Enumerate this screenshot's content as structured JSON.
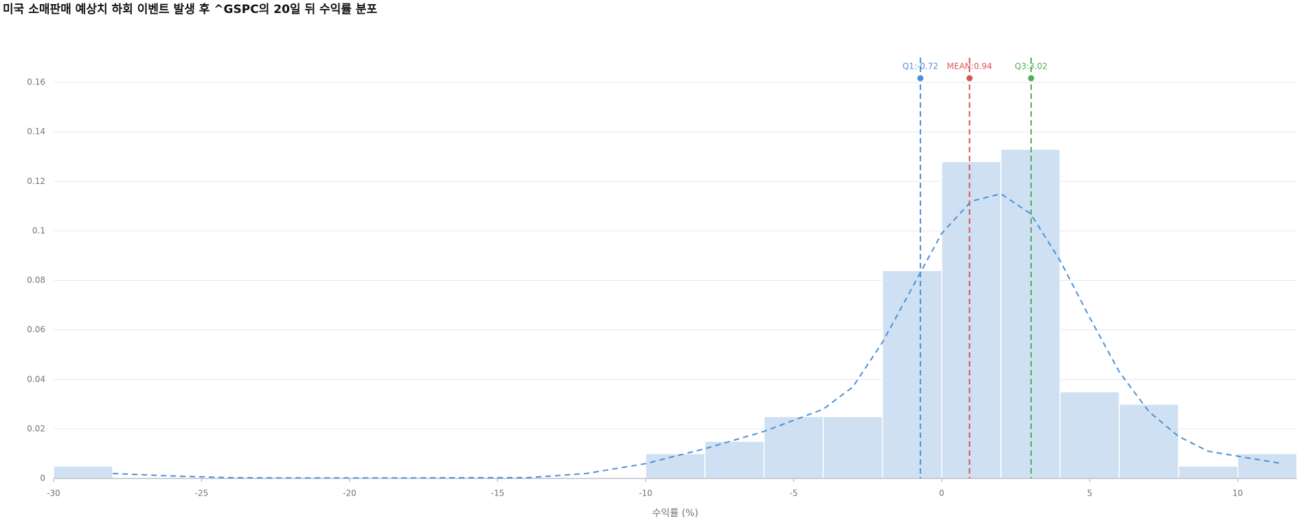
{
  "chart_data": {
    "type": "histogram",
    "title": "미국 소매판매 예상치 하회 이벤트 발생 후 ^GSPC의 20일 뒤 수익률 분포",
    "x_label": "수익률 (%)",
    "bins": [
      -30,
      -28,
      -26,
      -24,
      -22,
      -20,
      -18,
      -16,
      -14,
      -12,
      -10,
      -8,
      -6,
      -4,
      -2,
      0,
      2,
      4,
      6,
      8,
      10,
      12
    ],
    "values": [
      0.005,
      0,
      0,
      0,
      0,
      0,
      0,
      0,
      0,
      0,
      0.01,
      0.015,
      0.025,
      0.025,
      0.084,
      0.128,
      0.133,
      0.035,
      0.03,
      0.005,
      0.01
    ],
    "color": "#cfe0f2",
    "kde": {
      "color": "#4a90d9",
      "x": [
        -28,
        -26,
        -24,
        -22,
        -20,
        -18,
        -16,
        -14,
        -12,
        -10,
        -8,
        -6,
        -4,
        -3,
        -2,
        -1,
        0,
        1,
        2,
        3,
        4,
        5,
        6,
        7,
        8,
        9,
        10,
        11.5
      ],
      "values": [
        0.002,
        0.001,
        0.0003,
        0.0002,
        0.0002,
        0.0002,
        0.0003,
        0.0003,
        0.002,
        0.006,
        0.012,
        0.019,
        0.028,
        0.037,
        0.055,
        0.077,
        0.099,
        0.112,
        0.115,
        0.107,
        0.088,
        0.065,
        0.043,
        0.027,
        0.017,
        0.011,
        0.009,
        0.006
      ]
    },
    "markers": [
      {
        "label": "Q1:-0.72",
        "value": -0.72,
        "color": "#4a90d9"
      },
      {
        "label": "MEAN:0.94",
        "value": 0.94,
        "color": "#d9534f"
      },
      {
        "label": "Q3:3.02",
        "value": 3.02,
        "color": "#4caf50"
      }
    ],
    "xlim": [
      -30,
      12
    ],
    "ylim": [
      0,
      0.17
    ],
    "xticks": [
      -30,
      -25,
      -20,
      -15,
      -10,
      -5,
      0,
      5,
      10
    ],
    "yticks": [
      0,
      0.02,
      0.04,
      0.06,
      0.08,
      0.1,
      0.12,
      0.14,
      0.16
    ],
    "grid": true
  }
}
